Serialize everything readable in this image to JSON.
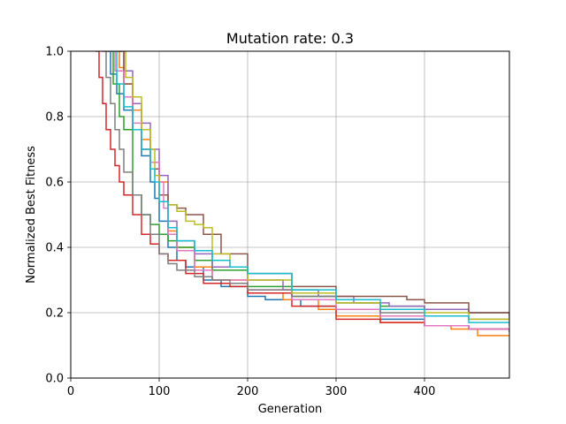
{
  "chart_data": {
    "type": "line",
    "title": "Mutation rate: 0.3",
    "xlabel": "Generation",
    "ylabel": "Normalized Best Fitness",
    "xlim": [
      0,
      496
    ],
    "ylim": [
      0.0,
      1.0
    ],
    "grid": true,
    "legend": "none",
    "xticks": [
      0,
      100,
      200,
      300,
      400
    ],
    "xtick_labels": [
      "0",
      "100",
      "200",
      "300",
      "400"
    ],
    "yticks": [
      0.0,
      0.2,
      0.4,
      0.6,
      0.8,
      1.0
    ],
    "ytick_labels": [
      "0.0",
      "0.2",
      "0.4",
      "0.6",
      "0.8",
      "1.0"
    ],
    "series": [
      {
        "color": "#1f77b4",
        "x": [
          38,
          45,
          52,
          60,
          70,
          80,
          90,
          95,
          100,
          110,
          120,
          130,
          150,
          170,
          200,
          220,
          260,
          300,
          350,
          400,
          450,
          496
        ],
        "y": [
          1.0,
          0.93,
          0.87,
          0.82,
          0.76,
          0.68,
          0.6,
          0.55,
          0.48,
          0.4,
          0.36,
          0.34,
          0.3,
          0.28,
          0.25,
          0.24,
          0.22,
          0.21,
          0.18,
          0.16,
          0.15,
          0.15
        ]
      },
      {
        "color": "#ff7f0e",
        "x": [
          50,
          55,
          60,
          70,
          80,
          90,
          100,
          110,
          120,
          140,
          160,
          200,
          240,
          280,
          300,
          350,
          400,
          430,
          460,
          496
        ],
        "y": [
          1.0,
          0.95,
          0.9,
          0.82,
          0.73,
          0.66,
          0.6,
          0.45,
          0.4,
          0.34,
          0.3,
          0.26,
          0.24,
          0.21,
          0.19,
          0.17,
          0.16,
          0.15,
          0.13,
          0.13
        ]
      },
      {
        "color": "#2ca02c",
        "x": [
          42,
          48,
          55,
          60,
          70,
          80,
          90,
          100,
          110,
          120,
          140,
          160,
          200,
          250,
          300,
          350,
          400,
          450,
          496
        ],
        "y": [
          1.0,
          0.9,
          0.8,
          0.76,
          0.56,
          0.5,
          0.47,
          0.44,
          0.42,
          0.4,
          0.36,
          0.33,
          0.28,
          0.25,
          0.23,
          0.22,
          0.21,
          0.2,
          0.18
        ]
      },
      {
        "color": "#d62728",
        "x": [
          28,
          32,
          36,
          40,
          45,
          50,
          55,
          60,
          70,
          80,
          90,
          100,
          110,
          130,
          150,
          180,
          200,
          250,
          300,
          350,
          400,
          450,
          496
        ],
        "y": [
          1.0,
          0.92,
          0.84,
          0.76,
          0.7,
          0.65,
          0.6,
          0.56,
          0.5,
          0.44,
          0.41,
          0.38,
          0.36,
          0.32,
          0.29,
          0.28,
          0.26,
          0.22,
          0.18,
          0.17,
          0.16,
          0.15,
          0.14
        ]
      },
      {
        "color": "#9467bd",
        "x": [
          55,
          60,
          70,
          80,
          90,
          100,
          110,
          120,
          140,
          160,
          200,
          240,
          280,
          320,
          360,
          400,
          450,
          496
        ],
        "y": [
          1.0,
          0.94,
          0.84,
          0.78,
          0.7,
          0.62,
          0.48,
          0.42,
          0.38,
          0.34,
          0.3,
          0.27,
          0.25,
          0.23,
          0.22,
          0.21,
          0.2,
          0.19
        ]
      },
      {
        "color": "#8c564b",
        "x": [
          50,
          60,
          70,
          80,
          90,
          100,
          110,
          120,
          130,
          150,
          170,
          200,
          250,
          300,
          350,
          380,
          400,
          450,
          496
        ],
        "y": [
          1.0,
          0.9,
          0.76,
          0.7,
          0.64,
          0.56,
          0.53,
          0.52,
          0.5,
          0.44,
          0.38,
          0.32,
          0.28,
          0.25,
          0.25,
          0.24,
          0.23,
          0.2,
          0.2
        ]
      },
      {
        "color": "#e377c2",
        "x": [
          40,
          50,
          60,
          70,
          80,
          90,
          100,
          105,
          110,
          120,
          140,
          160,
          200,
          250,
          300,
          350,
          400,
          450,
          496
        ],
        "y": [
          1.0,
          0.94,
          0.86,
          0.78,
          0.7,
          0.66,
          0.6,
          0.52,
          0.44,
          0.39,
          0.33,
          0.3,
          0.27,
          0.24,
          0.21,
          0.19,
          0.16,
          0.15,
          0.14
        ]
      },
      {
        "color": "#7f7f7f",
        "x": [
          35,
          40,
          45,
          50,
          55,
          60,
          70,
          80,
          90,
          100,
          110,
          120,
          140,
          160,
          180,
          200,
          250,
          300,
          350,
          400,
          450,
          496
        ],
        "y": [
          1.0,
          0.92,
          0.84,
          0.76,
          0.7,
          0.63,
          0.56,
          0.5,
          0.44,
          0.38,
          0.35,
          0.33,
          0.31,
          0.3,
          0.29,
          0.27,
          0.25,
          0.23,
          0.2,
          0.19,
          0.18,
          0.18
        ]
      },
      {
        "color": "#bcbd22",
        "x": [
          58,
          62,
          70,
          80,
          90,
          95,
          100,
          110,
          120,
          130,
          140,
          150,
          160,
          180,
          200,
          250,
          300,
          350,
          400,
          450,
          496
        ],
        "y": [
          1.0,
          0.92,
          0.86,
          0.76,
          0.7,
          0.62,
          0.54,
          0.53,
          0.51,
          0.48,
          0.47,
          0.46,
          0.38,
          0.34,
          0.3,
          0.26,
          0.23,
          0.21,
          0.2,
          0.18,
          0.17
        ]
      },
      {
        "color": "#17becf",
        "x": [
          45,
          52,
          60,
          70,
          80,
          90,
          95,
          100,
          110,
          120,
          140,
          160,
          180,
          200,
          250,
          300,
          350,
          400,
          450,
          496
        ],
        "y": [
          1.0,
          0.9,
          0.83,
          0.76,
          0.7,
          0.64,
          0.6,
          0.54,
          0.46,
          0.42,
          0.39,
          0.36,
          0.34,
          0.32,
          0.27,
          0.24,
          0.21,
          0.19,
          0.17,
          0.16
        ]
      }
    ]
  }
}
